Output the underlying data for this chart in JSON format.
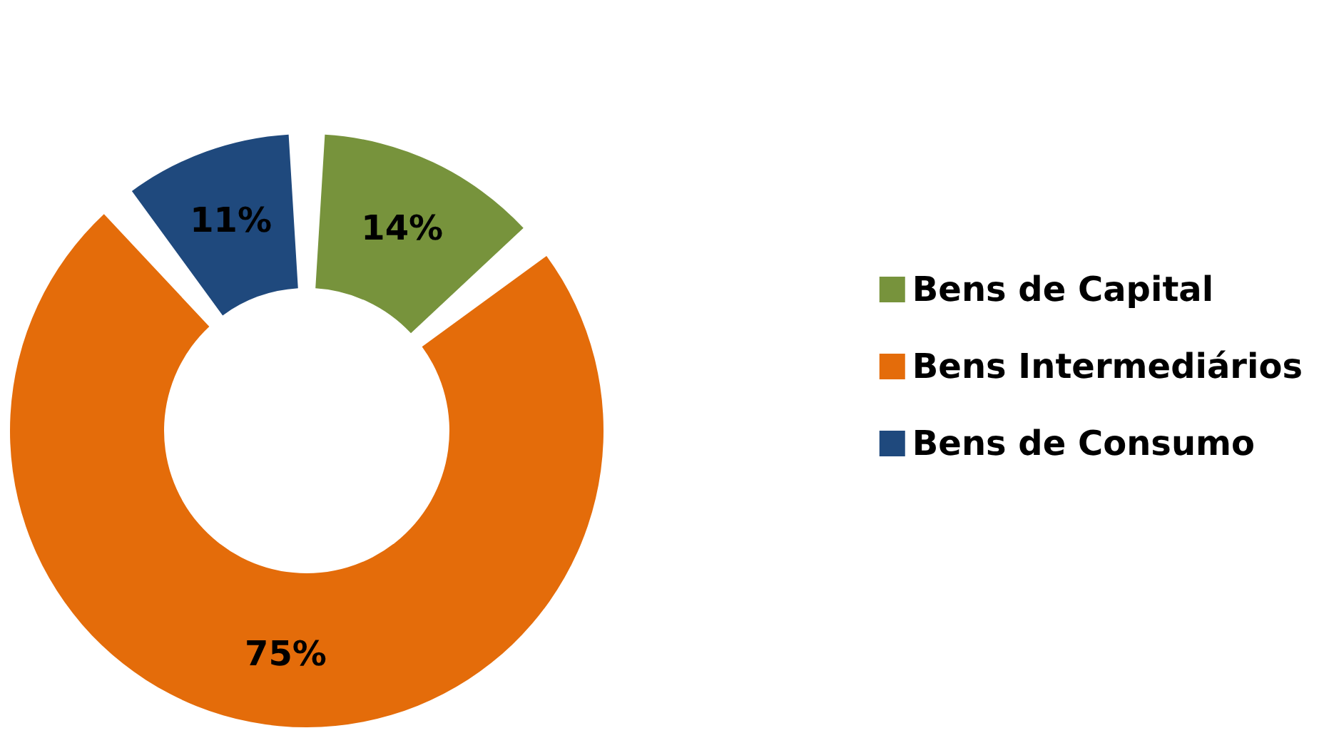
{
  "chart_data": {
    "type": "donut",
    "categories": [
      "Bens de Capital",
      "Bens Intermediários",
      "Bens de Consumo"
    ],
    "values": [
      14,
      75,
      11
    ],
    "value_labels": [
      "14%",
      "75%",
      "11%"
    ],
    "colors": [
      "#77933c",
      "#e46c0a",
      "#1f497d"
    ],
    "legend": "right"
  }
}
